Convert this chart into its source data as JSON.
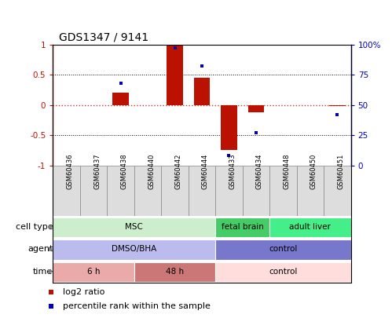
{
  "title": "GDS1347 / 9141",
  "samples": [
    "GSM60436",
    "GSM60437",
    "GSM60438",
    "GSM60440",
    "GSM60442",
    "GSM60444",
    "GSM60433",
    "GSM60434",
    "GSM60448",
    "GSM60450",
    "GSM60451"
  ],
  "log2_ratio": [
    0,
    0,
    0.2,
    0,
    1.0,
    0.45,
    -0.75,
    -0.12,
    0,
    0,
    -0.02
  ],
  "percentile_rank_pct": [
    null,
    null,
    68,
    null,
    97,
    82,
    8,
    27,
    null,
    null,
    42
  ],
  "ylim_left": [
    -1,
    1
  ],
  "ylim_right": [
    0,
    100
  ],
  "yticks_left": [
    -1,
    -0.5,
    0,
    0.5,
    1
  ],
  "yticks_left_labels": [
    "-1",
    "-0.5",
    "0",
    "0.5",
    "1"
  ],
  "yticks_right": [
    0,
    25,
    50,
    75,
    100
  ],
  "yticks_right_labels": [
    "0",
    "25",
    "50",
    "75",
    "100%"
  ],
  "dotted_lines": [
    -0.5,
    0.5
  ],
  "bar_color": "#BB1100",
  "dot_color": "#0000BB",
  "hline_color": "#CC3333",
  "cell_type_rows": [
    {
      "label": "MSC",
      "start": 0,
      "end": 5,
      "color": "#CCEECC",
      "text_color": "black"
    },
    {
      "label": "fetal brain",
      "start": 6,
      "end": 7,
      "color": "#44CC66",
      "text_color": "black"
    },
    {
      "label": "adult liver",
      "start": 8,
      "end": 10,
      "color": "#44EE88",
      "text_color": "black"
    }
  ],
  "agent_rows": [
    {
      "label": "DMSO/BHA",
      "start": 0,
      "end": 5,
      "color": "#BBBBEE",
      "text_color": "black"
    },
    {
      "label": "control",
      "start": 6,
      "end": 10,
      "color": "#7777CC",
      "text_color": "black"
    }
  ],
  "time_rows": [
    {
      "label": "6 h",
      "start": 0,
      "end": 2,
      "color": "#EAAAAA",
      "text_color": "black"
    },
    {
      "label": "48 h",
      "start": 3,
      "end": 5,
      "color": "#CC7777",
      "text_color": "black"
    },
    {
      "label": "control",
      "start": 6,
      "end": 10,
      "color": "#FFDDDD",
      "text_color": "black"
    }
  ],
  "row_labels": [
    "cell type",
    "agent",
    "time"
  ],
  "legend_items": [
    {
      "color": "#BB1100",
      "marker": "s",
      "label": "log2 ratio"
    },
    {
      "color": "#0000BB",
      "marker": "s",
      "label": "percentile rank within the sample"
    }
  ],
  "sample_box_color": "#DDDDDD",
  "sample_box_edge": "#888888",
  "bar_width": 0.6
}
